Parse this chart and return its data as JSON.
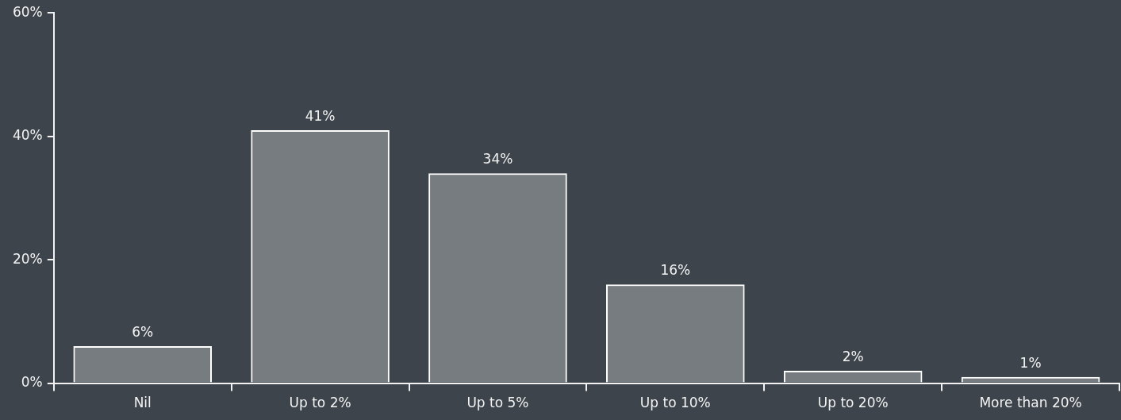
{
  "chart_data": {
    "type": "bar",
    "categories": [
      "Nil",
      "Up to 2%",
      "Up to 5%",
      "Up to 10%",
      "Up to 20%",
      "More than 20%"
    ],
    "values": [
      6,
      41,
      34,
      16,
      2,
      1
    ],
    "color": "#ffffff",
    "value_labels": [
      "6%",
      "41%",
      "34%",
      "16%",
      "2%",
      "1%"
    ],
    "ylim": [
      0,
      60
    ],
    "yticks": [
      {
        "value": 0,
        "label": "0%"
      },
      {
        "value": 20,
        "label": "20%"
      },
      {
        "value": 40,
        "label": "40%"
      },
      {
        "value": 60,
        "label": "60%"
      }
    ],
    "grid": false,
    "legend": false
  }
}
